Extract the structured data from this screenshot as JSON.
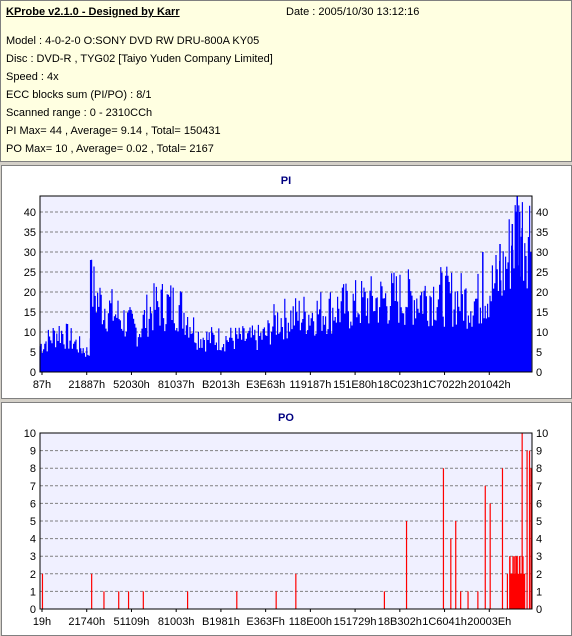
{
  "info": {
    "title": "KProbe v2.1.0 - Designed by Karr",
    "date": "Date : 2005/10/30 13:12:16",
    "lines": [
      "Model : 4-0-2-0 O:SONY    DVD RW DRU-800A  KY05",
      "Disc : DVD-R , TYG02 [Taiyo Yuden Company Limited]",
      "Speed : 4x",
      "ECC blocks sum (PI/PO) : 8/1",
      "Scanned range : 0 - 2310CCh",
      "PI Max= 44 , Average= 9.14 , Total= 150431",
      "PO Max= 10 , Average= 0.02 , Total= 2167"
    ]
  },
  "chart_data": [
    {
      "type": "bar",
      "title": "PI",
      "color": "#0000ff",
      "ylim": [
        0,
        44
      ],
      "yticks": [
        0,
        5,
        10,
        15,
        20,
        25,
        30,
        35,
        40
      ],
      "grid": true,
      "xticks": [
        "87h",
        "21887h",
        "52030h",
        "81037h",
        "B2013h",
        "E3E63h",
        "119187h",
        "151E80h",
        "18C023h",
        "1C7022h",
        "201042h"
      ],
      "profile": [
        [
          0,
          7
        ],
        [
          0.02,
          9
        ],
        [
          0.04,
          11
        ],
        [
          0.06,
          9
        ],
        [
          0.08,
          7
        ],
        [
          0.1,
          5
        ],
        [
          0.105,
          23
        ],
        [
          0.12,
          19
        ],
        [
          0.14,
          17
        ],
        [
          0.16,
          15
        ],
        [
          0.18,
          13
        ],
        [
          0.2,
          11
        ],
        [
          0.22,
          16
        ],
        [
          0.24,
          18
        ],
        [
          0.26,
          18
        ],
        [
          0.28,
          18
        ],
        [
          0.3,
          15
        ],
        [
          0.32,
          10
        ],
        [
          0.34,
          9
        ],
        [
          0.36,
          9
        ],
        [
          0.4,
          9
        ],
        [
          0.44,
          9
        ],
        [
          0.46,
          10
        ],
        [
          0.48,
          14
        ],
        [
          0.52,
          15
        ],
        [
          0.56,
          16
        ],
        [
          0.6,
          17
        ],
        [
          0.64,
          18
        ],
        [
          0.68,
          19
        ],
        [
          0.72,
          20
        ],
        [
          0.76,
          20
        ],
        [
          0.8,
          21
        ],
        [
          0.84,
          20
        ],
        [
          0.88,
          19
        ],
        [
          0.9,
          20
        ],
        [
          0.92,
          23
        ],
        [
          0.94,
          26
        ],
        [
          0.95,
          30
        ],
        [
          0.96,
          35
        ],
        [
          0.97,
          38
        ]
      ],
      "peaks": [
        [
          0.103,
          28
        ],
        [
          0.9,
          30
        ],
        [
          0.935,
          32
        ],
        [
          0.96,
          37
        ],
        [
          0.97,
          44
        ],
        [
          0.975,
          40
        ],
        [
          0.98,
          36
        ]
      ]
    },
    {
      "type": "bar",
      "title": "PO",
      "color": "#ff0000",
      "ylim": [
        0,
        10
      ],
      "yticks": [
        0,
        1,
        2,
        3,
        4,
        5,
        6,
        7,
        8,
        9,
        10
      ],
      "grid": true,
      "xticks": [
        "19h",
        "21740h",
        "51109h",
        "81003h",
        "B1981h",
        "E363Fh",
        "118E00h",
        "151729h",
        "18B302h",
        "1C6041h",
        "20003Eh"
      ],
      "spikes": [
        [
          0.005,
          2
        ],
        [
          0.105,
          2
        ],
        [
          0.13,
          1
        ],
        [
          0.16,
          1
        ],
        [
          0.18,
          1
        ],
        [
          0.21,
          1
        ],
        [
          0.3,
          1
        ],
        [
          0.4,
          1
        ],
        [
          0.48,
          1
        ],
        [
          0.52,
          2
        ],
        [
          0.7,
          1
        ],
        [
          0.745,
          5
        ],
        [
          0.82,
          8
        ],
        [
          0.835,
          4
        ],
        [
          0.845,
          5
        ],
        [
          0.855,
          1
        ],
        [
          0.87,
          1
        ],
        [
          0.89,
          1
        ],
        [
          0.905,
          7
        ],
        [
          0.915,
          6
        ],
        [
          0.94,
          8
        ],
        [
          0.95,
          2
        ],
        [
          0.96,
          2
        ],
        [
          0.965,
          3
        ],
        [
          0.97,
          3
        ],
        [
          0.975,
          3
        ],
        [
          0.98,
          10
        ],
        [
          0.985,
          2
        ],
        [
          0.99,
          9
        ],
        [
          0.995,
          9
        ],
        [
          0.998,
          8
        ]
      ]
    }
  ]
}
